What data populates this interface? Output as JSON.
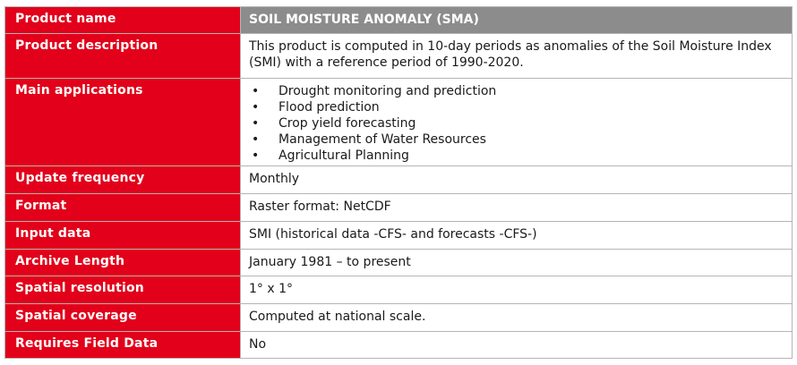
{
  "rows": [
    {
      "key": "Product name",
      "value": "SOIL MOISTURE ANOMALY (SMA)"
    },
    {
      "key": "Product description",
      "value": "This product is computed in 10-day periods as anomalies of the Soil Moisture Index (SMI) with a reference period of 1990-2020."
    },
    {
      "key": "Main applications",
      "items": [
        "Drought monitoring and prediction",
        "Flood prediction",
        "Crop yield forecasting",
        "Management of Water Resources",
        "Agricultural Planning"
      ]
    },
    {
      "key": "Update frequency",
      "value": "Monthly"
    },
    {
      "key": "Format",
      "value": "Raster format: NetCDF"
    },
    {
      "key": "Input data",
      "value": "SMI (historical data -CFS- and forecasts -CFS-)"
    },
    {
      "key": "Archive Length",
      "value": "January 1981 – to present"
    },
    {
      "key": "Spatial resolution",
      "value": "1° x 1°"
    },
    {
      "key": "Spatial coverage",
      "value": "Computed at national scale."
    },
    {
      "key": "Requires Field Data",
      "value": "No"
    }
  ],
  "colors": {
    "key_background": "#e2001a",
    "header_background": "#8c8c8c",
    "border": "#b5b5b5"
  }
}
